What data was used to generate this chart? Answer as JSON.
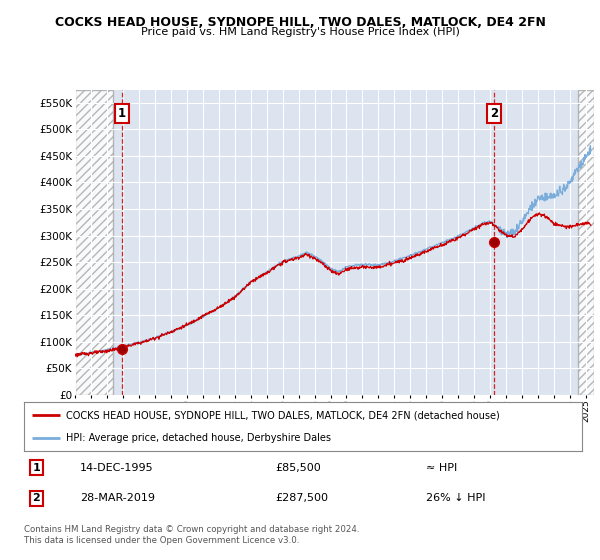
{
  "title": "COCKS HEAD HOUSE, SYDNOPE HILL, TWO DALES, MATLOCK, DE4 2FN",
  "subtitle": "Price paid vs. HM Land Registry's House Price Index (HPI)",
  "ylim": [
    0,
    575000
  ],
  "yticks": [
    0,
    50000,
    100000,
    150000,
    200000,
    250000,
    300000,
    350000,
    400000,
    450000,
    500000,
    550000
  ],
  "ytick_labels": [
    "£0",
    "£50K",
    "£100K",
    "£150K",
    "£200K",
    "£250K",
    "£300K",
    "£350K",
    "£400K",
    "£450K",
    "£500K",
    "£550K"
  ],
  "background_color": "#ffffff",
  "plot_bg_color": "#dce4f0",
  "grid_color": "#ffffff",
  "red_line_color": "#cc0000",
  "blue_line_color": "#7aacdc",
  "marker1_date_num": 1995.95,
  "marker1_value": 85500,
  "marker2_date_num": 2019.24,
  "marker2_value": 287500,
  "legend_label_red": "COCKS HEAD HOUSE, SYDNOPE HILL, TWO DALES, MATLOCK, DE4 2FN (detached house)",
  "legend_label_blue": "HPI: Average price, detached house, Derbyshire Dales",
  "annotation1_date": "14-DEC-1995",
  "annotation1_price": "£85,500",
  "annotation1_hpi": "≈ HPI",
  "annotation2_date": "28-MAR-2019",
  "annotation2_price": "£287,500",
  "annotation2_hpi": "26% ↓ HPI",
  "footer1": "Contains HM Land Registry data © Crown copyright and database right 2024.",
  "footer2": "This data is licensed under the Open Government Licence v3.0.",
  "xmin": 1993.0,
  "xmax": 2025.5,
  "hatch_xmin": 1993.0,
  "hatch_x1": 1995.4,
  "hatch_x2": 2024.5,
  "hatch_xmax": 2025.5
}
